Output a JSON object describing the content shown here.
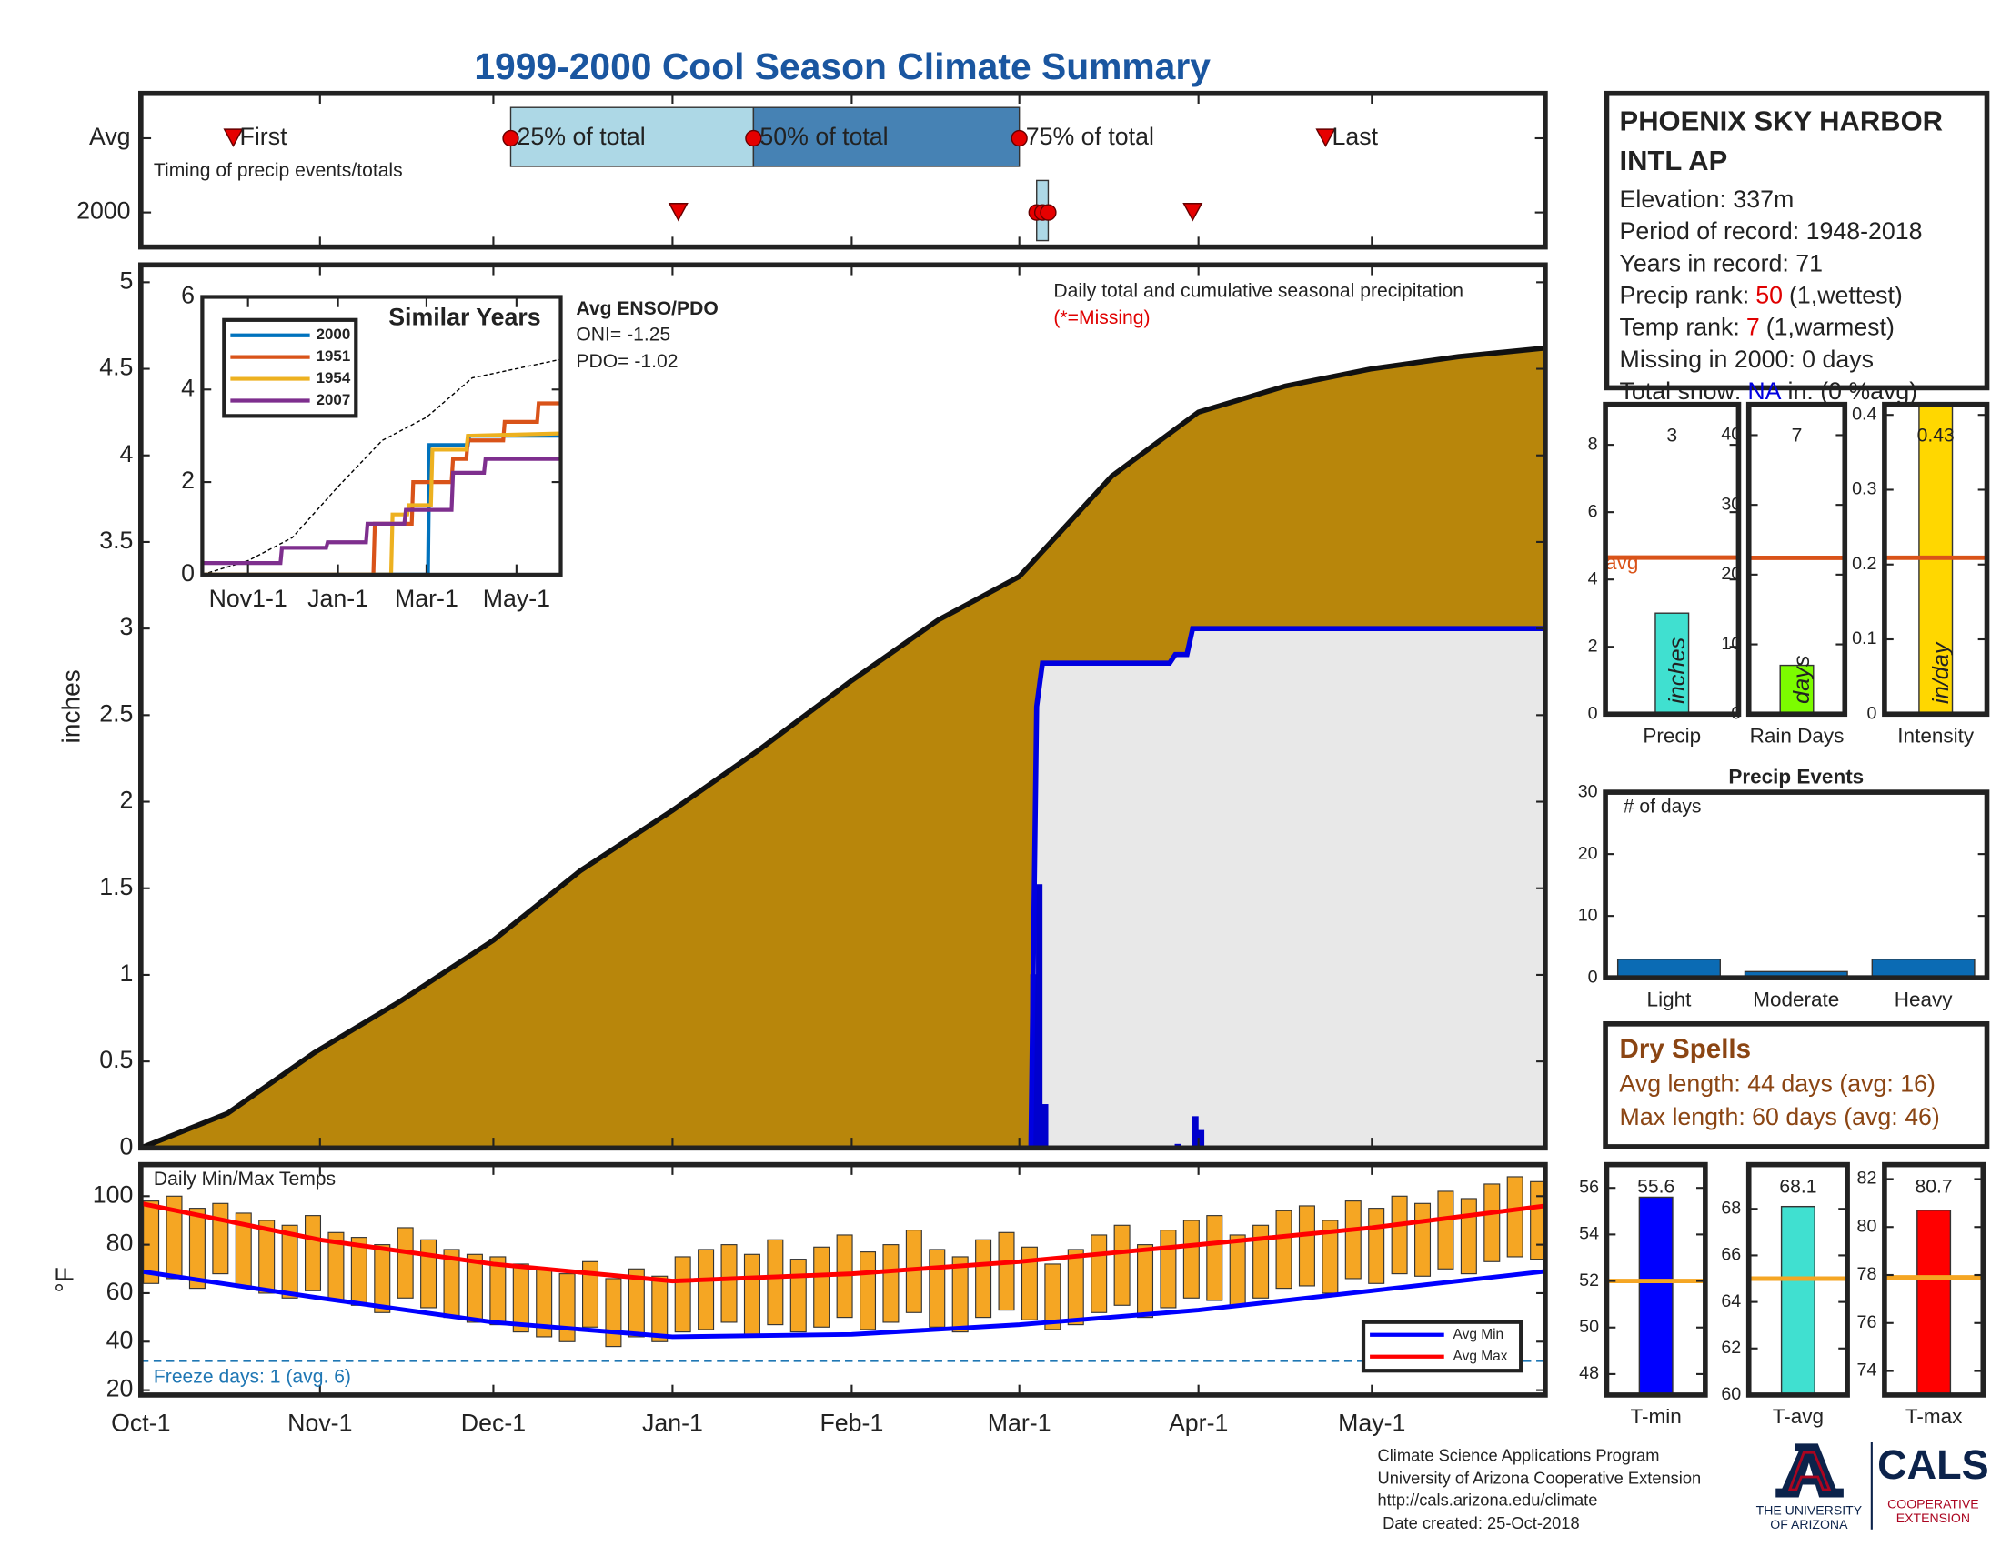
{
  "title": "1999-2000 Cool Season Climate Summary",
  "station": {
    "name": [
      "PHOENIX SKY HARBOR",
      "INTL AP"
    ],
    "elevation": "Elevation: 337m",
    "period": "Period of record: 1948-2018",
    "years": "Years in record: 71",
    "precip_rank": {
      "label": "Precip rank:",
      "value": 50,
      "note": "(1,wettest)"
    },
    "temp_rank": {
      "label": "Temp rank:",
      "value": 7,
      "note": "(1,warmest)"
    },
    "missing": "Missing in 2000: 0 days",
    "snow": {
      "label": "Total snow:",
      "value": "NA",
      "note": "in. (0 %avg)"
    }
  },
  "dry_spells": {
    "title": "Dry Spells",
    "lines": [
      "Avg length: 44 days (avg: 16)",
      "Max length: 60 days (avg: 46)"
    ]
  },
  "footer": [
    "Climate Science Applications Program",
    "University of Arizona Cooperative Extension",
    "http://cals.arizona.edu/climate",
    "Date created: 25-Oct-2018"
  ],
  "logo": {
    "university": [
      "THE UNIVERSITY",
      "OF ARIZONA"
    ],
    "cals": "CALS",
    "extension": [
      "COOPERATIVE",
      "EXTENSION"
    ]
  },
  "chart_data": [
    {
      "type": "timeline",
      "rows": [
        "Avg",
        "2000"
      ],
      "note": "Timing of precip events/totals",
      "marker_labels": [
        "First",
        "25% of total",
        "50% of total",
        "75% of total",
        "Last"
      ],
      "avg": [
        16,
        64,
        106,
        152,
        205
      ],
      "y2000": [
        93,
        155,
        156,
        157,
        182
      ],
      "xlim": [
        0,
        243
      ],
      "colors": {
        "early": "#add8e6",
        "late": "#4682b4",
        "marker": "#e60000"
      }
    },
    {
      "type": "area",
      "ylabel": "inches",
      "annotation": "Daily total and cumulative seasonal precipitation",
      "missing_note": "(*=Missing)",
      "xlim": [
        0,
        243
      ],
      "ylim": [
        0,
        5.1
      ],
      "yticks": [
        0,
        0.5,
        1,
        1.5,
        2,
        2.5,
        3,
        3.5,
        4,
        4.5,
        5
      ],
      "average_cumulative": {
        "color": "#b8860b",
        "x": [
          0,
          15,
          30,
          45,
          61,
          76,
          92,
          107,
          123,
          138,
          152,
          168,
          183,
          198,
          213,
          228,
          243
        ],
        "values": [
          0,
          0.2,
          0.55,
          0.85,
          1.2,
          1.6,
          1.95,
          2.3,
          2.7,
          3.05,
          3.3,
          3.88,
          4.25,
          4.4,
          4.5,
          4.57,
          4.62
        ]
      },
      "cumulative_2000": {
        "color": "#0000e0",
        "fill": "#e8e8e8",
        "x": [
          92,
          154,
          155,
          156,
          178,
          179,
          181,
          182,
          243
        ],
        "values": [
          0,
          0,
          2.55,
          2.8,
          2.8,
          2.85,
          2.85,
          3.0,
          3.0
        ]
      },
      "daily_2000": {
        "color": "#0000cd",
        "x": [
          154,
          155,
          156,
          179,
          182,
          183
        ],
        "values": [
          1.0,
          1.52,
          0.25,
          0.02,
          0.18,
          0.1
        ]
      }
    },
    {
      "type": "line",
      "title": "Similar Years",
      "xlim": [
        0,
        243
      ],
      "ylim": [
        0,
        6
      ],
      "yticks": [
        0,
        2,
        4,
        6
      ],
      "xticks": [
        {
          "value": 31,
          "label": "Nov1-1"
        },
        {
          "value": 92,
          "label": "Jan-1"
        },
        {
          "value": 152,
          "label": "Mar-1"
        },
        {
          "value": 213,
          "label": "May-1"
        }
      ],
      "enso": {
        "title": "Avg ENSO/PDO",
        "lines": [
          "ONI= -1.25",
          "PDO= -1.02"
        ]
      },
      "average": {
        "color": "#000000",
        "x": [
          0,
          31,
          61,
          92,
          122,
          152,
          183,
          213,
          243
        ],
        "values": [
          0,
          0.3,
          0.8,
          1.9,
          2.9,
          3.4,
          4.25,
          4.45,
          4.65
        ]
      },
      "series": [
        {
          "name": "2000",
          "color": "#0072bd",
          "x": [
            0,
            153,
            154,
            180,
            181,
            243
          ],
          "values": [
            0,
            0,
            2.8,
            2.8,
            3.0,
            3.0
          ]
        },
        {
          "name": "1951",
          "color": "#d95319",
          "x": [
            0,
            116,
            117,
            142,
            143,
            169,
            170,
            179,
            180,
            204,
            205,
            227,
            228,
            243
          ],
          "values": [
            0,
            0,
            1.1,
            1.1,
            2.0,
            2.0,
            2.5,
            2.5,
            2.9,
            2.9,
            3.3,
            3.3,
            3.7,
            3.7
          ]
        },
        {
          "name": "1954",
          "color": "#edb120",
          "x": [
            0,
            128,
            129,
            139,
            140,
            155,
            156,
            179,
            180,
            243
          ],
          "values": [
            0,
            0,
            1.3,
            1.3,
            1.5,
            1.5,
            2.7,
            2.7,
            3.0,
            3.05
          ]
        },
        {
          "name": "2007",
          "color": "#7e2f8e",
          "x": [
            0,
            53,
            54,
            84,
            85,
            111,
            112,
            137,
            138,
            169,
            170,
            191,
            192,
            243
          ],
          "values": [
            0.25,
            0.25,
            0.58,
            0.58,
            0.7,
            0.7,
            1.1,
            1.1,
            1.4,
            1.4,
            2.2,
            2.2,
            2.5,
            2.5
          ]
        }
      ]
    },
    {
      "type": "range",
      "title": "Daily Min/Max Temps",
      "ylabel": "°F",
      "annotation": "Freeze days: 1 (avg. 6)",
      "xlim": [
        0,
        243
      ],
      "ylim": [
        18,
        113
      ],
      "yticks": [
        20,
        40,
        60,
        80,
        100
      ],
      "xticks": [
        {
          "value": 0,
          "label": "Oct-1"
        },
        {
          "value": 31,
          "label": "Nov-1"
        },
        {
          "value": 61,
          "label": "Dec-1"
        },
        {
          "value": 92,
          "label": "Jan-1"
        },
        {
          "value": 123,
          "label": "Feb-1"
        },
        {
          "value": 152,
          "label": "Mar-1"
        },
        {
          "value": 183,
          "label": "Apr-1"
        },
        {
          "value": 213,
          "label": "May-1"
        }
      ],
      "freeze_line": {
        "value": 32,
        "color": "#1f77b4"
      },
      "daily": {
        "color": "#f5a623",
        "x": [
          0,
          4,
          8,
          12,
          16,
          20,
          24,
          28,
          32,
          36,
          40,
          44,
          48,
          52,
          56,
          60,
          64,
          68,
          72,
          76,
          80,
          84,
          88,
          92,
          96,
          100,
          104,
          108,
          112,
          116,
          120,
          124,
          128,
          132,
          136,
          140,
          144,
          148,
          152,
          156,
          160,
          164,
          168,
          172,
          176,
          180,
          184,
          188,
          192,
          196,
          200,
          204,
          208,
          212,
          216,
          220,
          224,
          228,
          232,
          236,
          240
        ],
        "max": [
          98,
          100,
          95,
          97,
          93,
          90,
          88,
          92,
          85,
          83,
          80,
          87,
          82,
          78,
          76,
          75,
          72,
          70,
          68,
          73,
          66,
          70,
          67,
          75,
          78,
          80,
          76,
          82,
          74,
          79,
          84,
          77,
          80,
          86,
          78,
          75,
          82,
          85,
          79,
          72,
          78,
          84,
          88,
          80,
          86,
          90,
          92,
          84,
          88,
          94,
          96,
          90,
          98,
          95,
          100,
          97,
          102,
          99,
          105,
          108,
          106
        ],
        "min": [
          64,
          66,
          62,
          68,
          63,
          60,
          58,
          61,
          57,
          55,
          52,
          58,
          54,
          50,
          48,
          47,
          44,
          42,
          40,
          46,
          38,
          42,
          40,
          44,
          45,
          48,
          42,
          47,
          44,
          46,
          50,
          45,
          48,
          52,
          46,
          44,
          50,
          53,
          49,
          45,
          47,
          52,
          55,
          50,
          54,
          58,
          57,
          55,
          58,
          62,
          63,
          60,
          66,
          64,
          68,
          67,
          70,
          68,
          73,
          75,
          74
        ]
      },
      "avg_min": {
        "name": "Avg Min",
        "color": "#0000ff",
        "x": [
          0,
          31,
          61,
          92,
          123,
          152,
          183,
          213,
          243
        ],
        "values": [
          69,
          58,
          48,
          42,
          43,
          47,
          53,
          61,
          69
        ]
      },
      "avg_max": {
        "name": "Avg Max",
        "color": "#ff0000",
        "x": [
          0,
          31,
          61,
          92,
          123,
          152,
          183,
          213,
          243
        ],
        "values": [
          97,
          82,
          72,
          65,
          68,
          73,
          80,
          87,
          96
        ]
      }
    },
    {
      "type": "bar",
      "categories": [
        "Precip"
      ],
      "values": [
        3
      ],
      "color": "#40e0d0",
      "ylim": [
        0,
        9.2
      ],
      "yticks": [
        0,
        2,
        4,
        6,
        8
      ],
      "avg": 4.65,
      "avg_color": "#d95319",
      "avg_label": "avg",
      "unit_label": "inches",
      "data_labels": true
    },
    {
      "type": "bar",
      "categories": [
        "Rain Days"
      ],
      "values": [
        7
      ],
      "color": "#7cfc00",
      "ylim": [
        0,
        44.4
      ],
      "yticks": [
        0,
        10,
        20,
        30,
        40
      ],
      "avg": 22.4,
      "avg_color": "#d95319",
      "unit_label": "days",
      "data_labels": true
    },
    {
      "type": "bar",
      "categories": [
        "Intensity"
      ],
      "values": [
        0.43
      ],
      "color": "#ffd700",
      "ylim": [
        0,
        0.414
      ],
      "yticks": [
        0,
        0.1,
        0.2,
        0.3,
        0.4
      ],
      "avg": 0.209,
      "avg_color": "#d95319",
      "unit_label": "in/day",
      "data_labels": true
    },
    {
      "type": "bar",
      "title": "Precip Events",
      "note": "# of days",
      "categories": [
        "Light",
        "Moderate",
        "Heavy"
      ],
      "values": [
        3,
        1,
        3
      ],
      "color": "#0b6bb4",
      "ylim": [
        0,
        30
      ],
      "yticks": [
        0,
        10,
        20,
        30
      ]
    },
    {
      "type": "bar",
      "categories": [
        "T-min"
      ],
      "values": [
        55.6
      ],
      "color": "#0000ff",
      "ylim": [
        47.1,
        57
      ],
      "yticks": [
        48,
        50,
        52,
        54,
        56
      ],
      "avg": 52.0,
      "avg_color": "#f5a623",
      "data_labels": true
    },
    {
      "type": "bar",
      "categories": [
        "T-avg"
      ],
      "values": [
        68.1
      ],
      "color": "#40e0d0",
      "ylim": [
        60,
        69.9
      ],
      "yticks": [
        60,
        62,
        64,
        66,
        68
      ],
      "avg": 65.0,
      "avg_color": "#f5a623",
      "data_labels": true
    },
    {
      "type": "bar",
      "categories": [
        "T-max"
      ],
      "values": [
        80.7
      ],
      "color": "#ff0000",
      "ylim": [
        73,
        82.6
      ],
      "yticks": [
        74,
        76,
        78,
        80,
        82
      ],
      "avg": 77.9,
      "avg_color": "#f5a623",
      "data_labels": true
    }
  ]
}
